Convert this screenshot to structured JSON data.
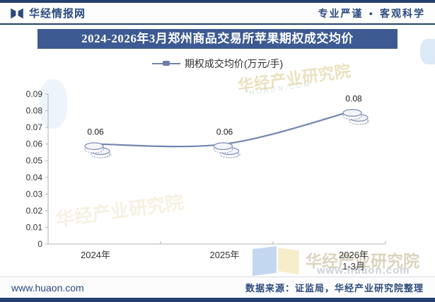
{
  "header": {
    "logo_text": "华经情报网",
    "tagline_left": "专业严谨",
    "tagline_separator": "●",
    "tagline_right": "客观科学"
  },
  "title": {
    "text": "2024-2026年3月郑州商品交易所苹果期权成交均价"
  },
  "legend": {
    "label": "期权成交均价(万元/手)"
  },
  "chart_data": {
    "type": "line",
    "categories": [
      "2024年",
      "2025年",
      "2026年"
    ],
    "category_sublabels": [
      "",
      "",
      "1-3月"
    ],
    "series": [
      {
        "name": "期权成交均价(万元/手)",
        "values": [
          0.06,
          0.06,
          0.08
        ]
      }
    ],
    "data_labels": [
      "0.06",
      "0.06",
      "0.08"
    ],
    "title": "2024-2026年3月郑州商品交易所苹果期权成交均价",
    "xlabel": "",
    "ylabel": "万元/手",
    "ylim": [
      0,
      0.09
    ],
    "ytick_step": 0.01,
    "grid": false,
    "legend_position": "top",
    "line_color": "#7285ae",
    "marker": "coin-stack",
    "axis_color": "#b3b3b3",
    "label_color": "#333333"
  },
  "watermarks": {
    "cn": "华经产业研究院",
    "url": "www.huaon.com",
    "latin": "HUAON.COM"
  },
  "footer": {
    "site": "www.huaon.com",
    "source": "数据来源：证监局，华经产业研究院整理"
  },
  "colors": {
    "navy": "#24406e",
    "banner": "#3d5b92",
    "line": "#7285ae"
  }
}
